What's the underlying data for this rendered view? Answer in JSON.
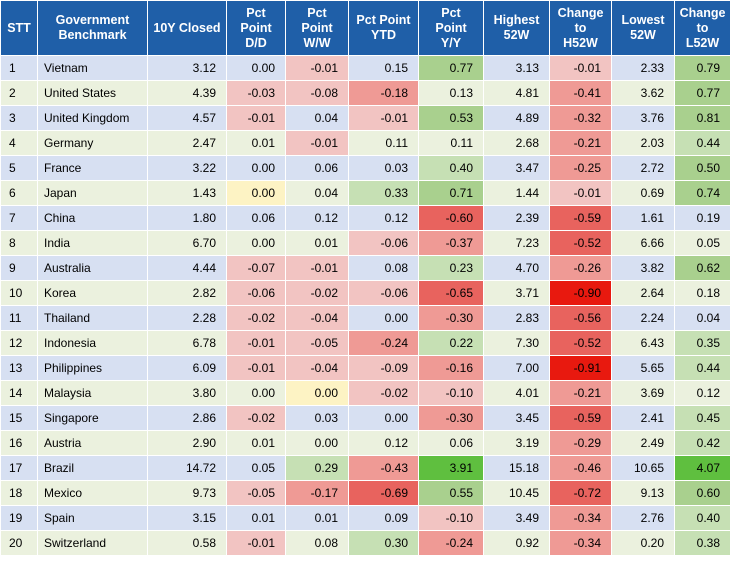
{
  "columns": [
    "STT",
    "Government\nBenchmark",
    "10Y Closed",
    "Pct\nPoint\nD/D",
    "Pct\nPoint\nW/W",
    "Pct Point\nYTD",
    "Pct\nPoint\nY/Y",
    "Highest\n52W",
    "Change\nto\nH52W",
    "Lowest\n52W",
    "Change\nto\nL52W"
  ],
  "colors": {
    "header": "#1f5fa8",
    "row_odd": "#d7e0f2",
    "row_even": "#ebf1de",
    "neg_light": "#f2c4c2",
    "neg_mid": "#ef9a95",
    "neg_strong": "#e8635e",
    "neg_max": "#e8190f",
    "pos_light": "#c6e0b4",
    "pos_mid": "#a9d08e",
    "pos_max": "#5fbf3f",
    "zero": "#fdf3c4"
  },
  "rows": [
    {
      "stt": "1",
      "name": "Vietnam",
      "closed": "3.12",
      "dd": "0.00",
      "ww": "-0.01",
      "ytd": "0.15",
      "yy": "0.77",
      "h52": "3.13",
      "ch52": "-0.01",
      "l52": "2.33",
      "cl52": "0.79"
    },
    {
      "stt": "2",
      "name": "United States",
      "closed": "4.39",
      "dd": "-0.03",
      "ww": "-0.08",
      "ytd": "-0.18",
      "yy": "0.13",
      "h52": "4.81",
      "ch52": "-0.41",
      "l52": "3.62",
      "cl52": "0.77"
    },
    {
      "stt": "3",
      "name": "United Kingdom",
      "closed": "4.57",
      "dd": "-0.01",
      "ww": "0.04",
      "ytd": "-0.01",
      "yy": "0.53",
      "h52": "4.89",
      "ch52": "-0.32",
      "l52": "3.76",
      "cl52": "0.81"
    },
    {
      "stt": "4",
      "name": "Germany",
      "closed": "2.47",
      "dd": "0.01",
      "ww": "-0.01",
      "ytd": "0.11",
      "yy": "0.11",
      "h52": "2.68",
      "ch52": "-0.21",
      "l52": "2.03",
      "cl52": "0.44"
    },
    {
      "stt": "5",
      "name": "France",
      "closed": "3.22",
      "dd": "0.00",
      "ww": "0.06",
      "ytd": "0.03",
      "yy": "0.40",
      "h52": "3.47",
      "ch52": "-0.25",
      "l52": "2.72",
      "cl52": "0.50"
    },
    {
      "stt": "6",
      "name": "Japan",
      "closed": "1.43",
      "dd": "0.00",
      "ww": "0.04",
      "ytd": "0.33",
      "yy": "0.71",
      "h52": "1.44",
      "ch52": "-0.01",
      "l52": "0.69",
      "cl52": "0.74"
    },
    {
      "stt": "7",
      "name": "China",
      "closed": "1.80",
      "dd": "0.06",
      "ww": "0.12",
      "ytd": "0.12",
      "yy": "-0.60",
      "h52": "2.39",
      "ch52": "-0.59",
      "l52": "1.61",
      "cl52": "0.19"
    },
    {
      "stt": "8",
      "name": "India",
      "closed": "6.70",
      "dd": "0.00",
      "ww": "0.01",
      "ytd": "-0.06",
      "yy": "-0.37",
      "h52": "7.23",
      "ch52": "-0.52",
      "l52": "6.66",
      "cl52": "0.05"
    },
    {
      "stt": "9",
      "name": "Australia",
      "closed": "4.44",
      "dd": "-0.07",
      "ww": "-0.01",
      "ytd": "0.08",
      "yy": "0.23",
      "h52": "4.70",
      "ch52": "-0.26",
      "l52": "3.82",
      "cl52": "0.62"
    },
    {
      "stt": "10",
      "name": "Korea",
      "closed": "2.82",
      "dd": "-0.06",
      "ww": "-0.02",
      "ytd": "-0.06",
      "yy": "-0.65",
      "h52": "3.71",
      "ch52": "-0.90",
      "l52": "2.64",
      "cl52": "0.18"
    },
    {
      "stt": "11",
      "name": "Thailand",
      "closed": "2.28",
      "dd": "-0.02",
      "ww": "-0.04",
      "ytd": "0.00",
      "yy": "-0.30",
      "h52": "2.83",
      "ch52": "-0.56",
      "l52": "2.24",
      "cl52": "0.04"
    },
    {
      "stt": "12",
      "name": "Indonesia",
      "closed": "6.78",
      "dd": "-0.01",
      "ww": "-0.05",
      "ytd": "-0.24",
      "yy": "0.22",
      "h52": "7.30",
      "ch52": "-0.52",
      "l52": "6.43",
      "cl52": "0.35"
    },
    {
      "stt": "13",
      "name": "Philippines",
      "closed": "6.09",
      "dd": "-0.01",
      "ww": "-0.04",
      "ytd": "-0.09",
      "yy": "-0.16",
      "h52": "7.00",
      "ch52": "-0.91",
      "l52": "5.65",
      "cl52": "0.44"
    },
    {
      "stt": "14",
      "name": "Malaysia",
      "closed": "3.80",
      "dd": "0.00",
      "ww": "0.00",
      "ytd": "-0.02",
      "yy": "-0.10",
      "h52": "4.01",
      "ch52": "-0.21",
      "l52": "3.69",
      "cl52": "0.12"
    },
    {
      "stt": "15",
      "name": "Singapore",
      "closed": "2.86",
      "dd": "-0.02",
      "ww": "0.03",
      "ytd": "0.00",
      "yy": "-0.30",
      "h52": "3.45",
      "ch52": "-0.59",
      "l52": "2.41",
      "cl52": "0.45"
    },
    {
      "stt": "16",
      "name": "Austria",
      "closed": "2.90",
      "dd": "0.01",
      "ww": "0.00",
      "ytd": "0.12",
      "yy": "0.06",
      "h52": "3.19",
      "ch52": "-0.29",
      "l52": "2.49",
      "cl52": "0.42"
    },
    {
      "stt": "17",
      "name": "Brazil",
      "closed": "14.72",
      "dd": "0.05",
      "ww": "0.29",
      "ytd": "-0.43",
      "yy": "3.91",
      "h52": "15.18",
      "ch52": "-0.46",
      "l52": "10.65",
      "cl52": "4.07"
    },
    {
      "stt": "18",
      "name": "Mexico",
      "closed": "9.73",
      "dd": "-0.05",
      "ww": "-0.17",
      "ytd": "-0.69",
      "yy": "0.55",
      "h52": "10.45",
      "ch52": "-0.72",
      "l52": "9.13",
      "cl52": "0.60"
    },
    {
      "stt": "19",
      "name": "Spain",
      "closed": "3.15",
      "dd": "0.01",
      "ww": "0.01",
      "ytd": "0.09",
      "yy": "-0.10",
      "h52": "3.49",
      "ch52": "-0.34",
      "l52": "2.76",
      "cl52": "0.40"
    },
    {
      "stt": "20",
      "name": "Switzerland",
      "closed": "0.58",
      "dd": "-0.01",
      "ww": "0.08",
      "ytd": "0.30",
      "yy": "-0.24",
      "h52": "0.92",
      "ch52": "-0.34",
      "l52": "0.20",
      "cl52": "0.38"
    }
  ]
}
